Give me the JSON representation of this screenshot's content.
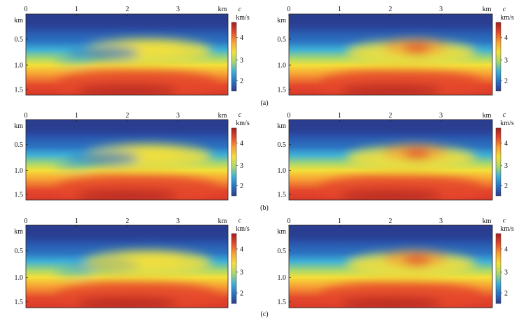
{
  "figure": {
    "panel_labels": [
      "(a)",
      "(b)",
      "(c)"
    ],
    "x_axis": {
      "unit": "km",
      "ticks": [
        "0",
        "1",
        "2",
        "3"
      ]
    },
    "y_axis": {
      "unit": "km",
      "ticks": [
        "0.5",
        "1.0",
        "1.5"
      ]
    },
    "colorbar": {
      "symbol": "c",
      "unit": "km/s",
      "ticks": [
        "4",
        "3",
        "2"
      ]
    },
    "colormap": [
      "#2c3d8f",
      "#2b74c2",
      "#3fb0d6",
      "#a9d86d",
      "#f3e03a",
      "#f7a235",
      "#e5492c",
      "#a51d1d"
    ],
    "panels": [
      {
        "row": 0,
        "col": 0,
        "structure": "low-velocity anomaly, rough"
      },
      {
        "row": 0,
        "col": 1,
        "structure": "smooth dome"
      },
      {
        "row": 1,
        "col": 0,
        "structure": "low-velocity anomaly, rough"
      },
      {
        "row": 1,
        "col": 1,
        "structure": "smooth dome"
      },
      {
        "row": 2,
        "col": 0,
        "structure": "dome, rough"
      },
      {
        "row": 2,
        "col": 1,
        "structure": "smooth dome"
      }
    ]
  },
  "chart_data": {
    "type": "heatmap",
    "variable": "c",
    "x_unit": "km",
    "y_unit": "km",
    "xlim": [
      0,
      4.0
    ],
    "ylim": [
      0,
      1.6
    ],
    "clim": [
      1.5,
      4.5
    ],
    "colorbar_ticks": [
      2,
      3,
      4
    ],
    "panel_labels": [
      "(a)",
      "(b)",
      "(c)"
    ]
  }
}
